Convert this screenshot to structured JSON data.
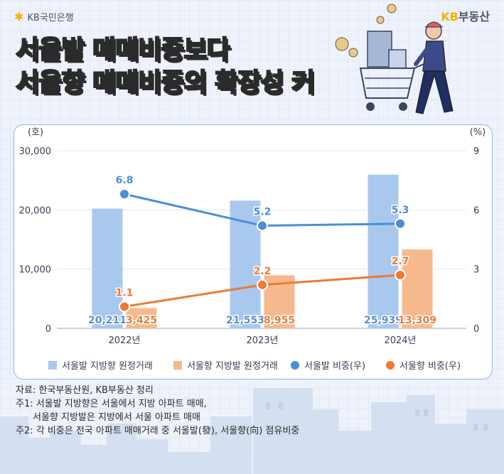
{
  "header": {
    "bank_logo": "KB국민은행",
    "brand_kb": "KB",
    "brand_rest": "부동산",
    "title_line1": "서울발 매매비중보다",
    "title_line2": "서울향 매매비중의 확장성 커"
  },
  "chart_data": {
    "type": "bar",
    "categories": [
      "2022년",
      "2023년",
      "2024년"
    ],
    "y_left_unit": "(호)",
    "y_right_unit": "(%)",
    "ylim_left": [
      0,
      30000
    ],
    "ylim_right": [
      0,
      9
    ],
    "y_left_ticks": [
      "0",
      "10,000",
      "20,000",
      "30,000"
    ],
    "y_right_ticks": [
      "0",
      "3",
      "6",
      "9"
    ],
    "grid": true,
    "legend_position": "bottom",
    "series": [
      {
        "name": "서울발 지방향 원정거래",
        "type": "bar",
        "axis": "left",
        "color": "#a9c8ee",
        "values": [
          20211,
          21553,
          25939
        ],
        "labels": [
          "20,211",
          "21,553",
          "25,939"
        ]
      },
      {
        "name": "서울향 지방발 원정거래",
        "type": "bar",
        "axis": "left",
        "color": "#f6b98d",
        "values": [
          3425,
          8955,
          13309
        ],
        "labels": [
          "3,425",
          "8,955",
          "13,309"
        ]
      },
      {
        "name": "서울발 비중(우)",
        "type": "line",
        "axis": "right",
        "color": "#4a8fd8",
        "values": [
          6.8,
          5.2,
          5.3
        ],
        "labels": [
          "6.8",
          "5.2",
          "5.3"
        ]
      },
      {
        "name": "서울향 비중(우)",
        "type": "line",
        "axis": "right",
        "color": "#ec7a32",
        "values": [
          1.1,
          2.2,
          2.7
        ],
        "labels": [
          "1.1",
          "2.2",
          "2.7"
        ]
      }
    ]
  },
  "notes": {
    "source": "자료: 한국부동산원, KB부동산 정리",
    "note1": "주1: 서울발 지방향은 서울에서 지방 아파트 매매,",
    "note1b": "서울향 지방발은 지방에서 서울 아파트 매매",
    "note2": "주2: 각 비중은 전국 아파트 매매거래 중 서울발(發), 서울향(向) 점유비중"
  }
}
